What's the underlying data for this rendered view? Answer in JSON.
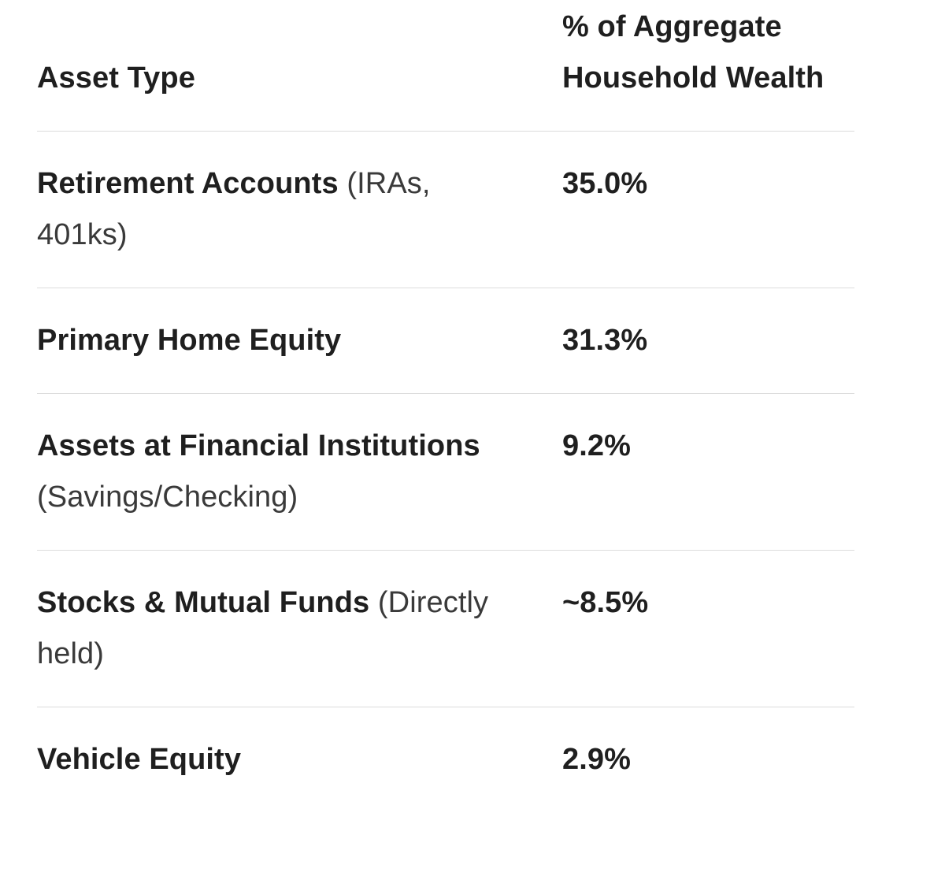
{
  "table": {
    "headers": {
      "asset_type": "Asset Type",
      "percent": "% of Aggregate Household Wealth"
    },
    "rows": [
      {
        "name": "Retirement Accounts",
        "note": "(IRAs, 401ks)",
        "value": "35.0%"
      },
      {
        "name": "Primary Home Equity",
        "note": "",
        "value": "31.3%"
      },
      {
        "name": "Assets at Financial Institutions",
        "note": "(Savings/Checking)",
        "value": "9.2%"
      },
      {
        "name": "Stocks & Mutual Funds",
        "note": "(Directly held)",
        "value": "~8.5%"
      },
      {
        "name": "Vehicle Equity",
        "note": "",
        "value": "2.9%"
      }
    ]
  }
}
